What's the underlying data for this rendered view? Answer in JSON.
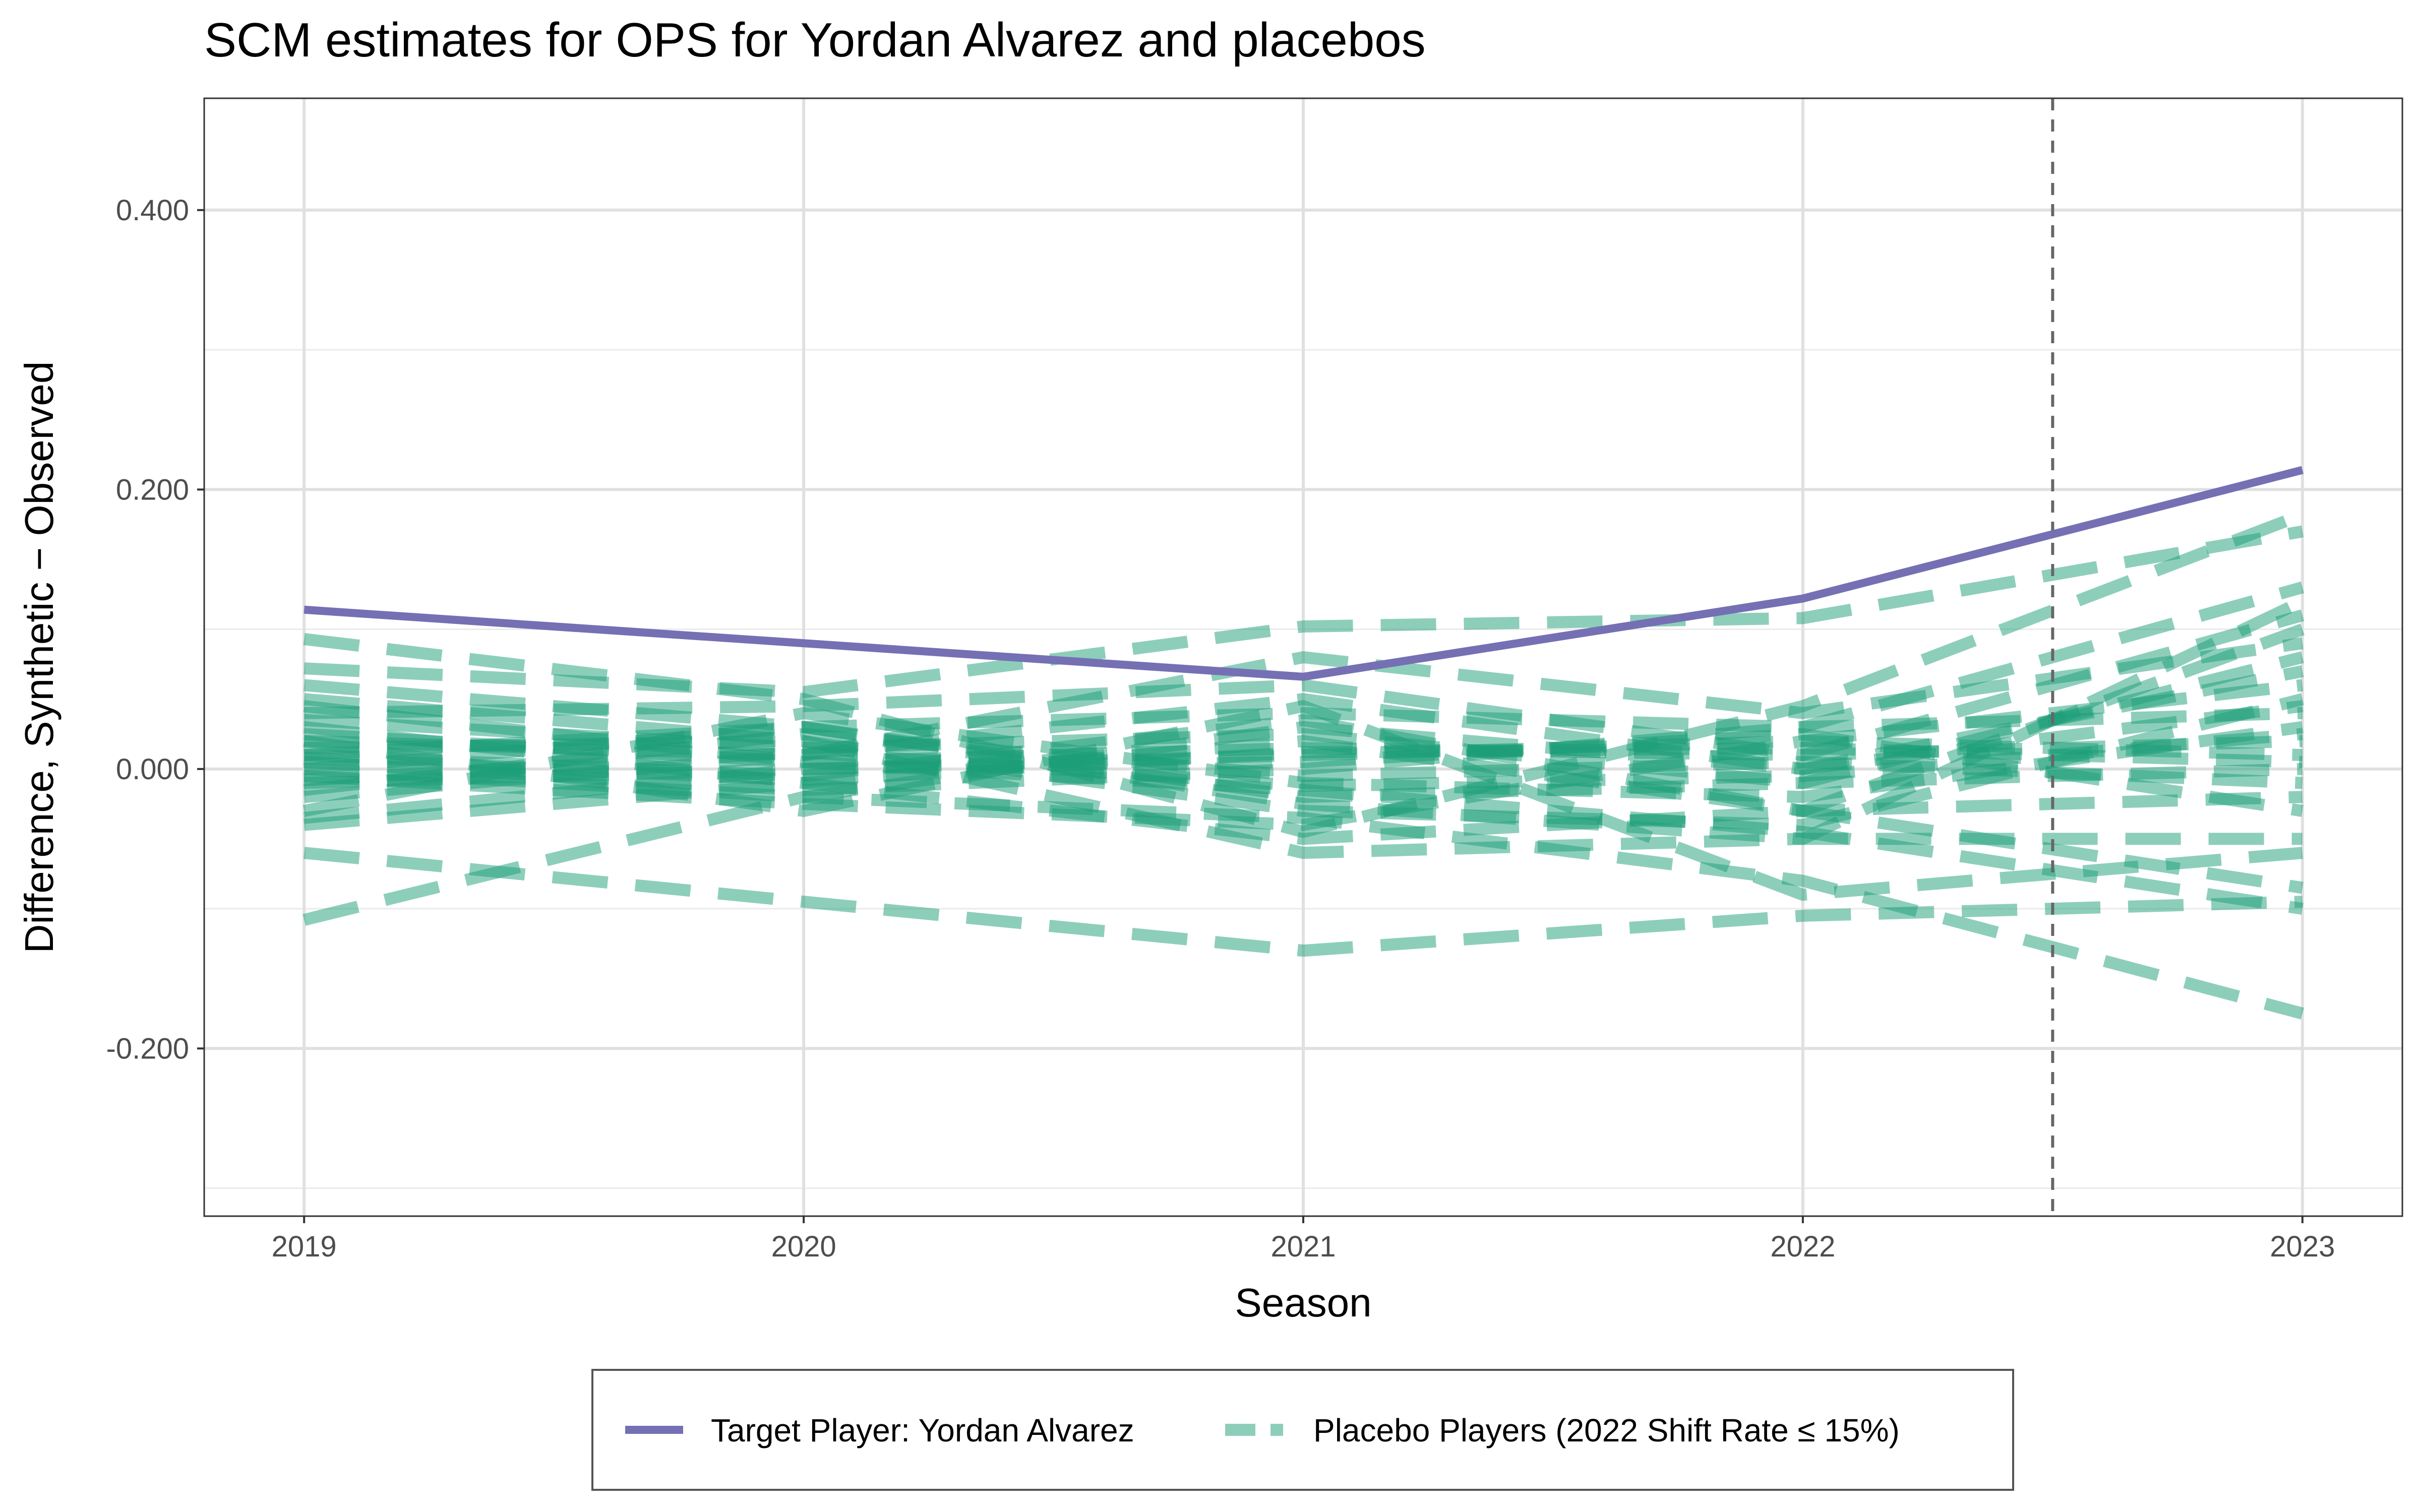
{
  "chart_data": {
    "type": "line",
    "title": "SCM estimates for OPS for Yordan Alvarez and placebos",
    "xlabel": "Season",
    "ylabel": "Difference, Synthetic − Observed",
    "x": [
      2019,
      2020,
      2021,
      2022,
      2023
    ],
    "x_ticks": [
      "2019",
      "2020",
      "2021",
      "2022",
      "2023"
    ],
    "y_ticks": [
      "-0.200",
      "0.000",
      "0.200",
      "0.400"
    ],
    "xlim": [
      2018.8,
      2023.2
    ],
    "ylim": [
      -0.32,
      0.48
    ],
    "grid": true,
    "vline_x": 2022.5,
    "legend_position": "bottom",
    "colors": {
      "target": "#7570b3",
      "placebo": "#1b9e77",
      "vline": "#666666"
    },
    "series": [
      {
        "name": "Target Player: Yordan Alvarez",
        "role": "target",
        "values": [
          0.114,
          0.09,
          0.066,
          0.122,
          0.214
        ]
      },
      {
        "role": "placebo",
        "values": [
          0.093,
          0.05,
          -0.045,
          0.045,
          0.182
        ]
      },
      {
        "role": "placebo",
        "values": [
          0.072,
          0.055,
          0.102,
          0.108,
          0.17
        ]
      },
      {
        "role": "placebo",
        "values": [
          0.06,
          0.03,
          0.04,
          0.03,
          0.13
        ]
      },
      {
        "role": "placebo",
        "values": [
          0.05,
          0.02,
          -0.06,
          -0.05,
          0.12
        ]
      },
      {
        "role": "placebo",
        "values": [
          0.04,
          0.045,
          0.06,
          0.01,
          0.11
        ]
      },
      {
        "role": "placebo",
        "values": [
          0.03,
          -0.01,
          0.02,
          -0.03,
          0.1
        ]
      },
      {
        "role": "placebo",
        "values": [
          0.02,
          0.01,
          0.08,
          0.04,
          0.09
        ]
      },
      {
        "role": "placebo",
        "values": [
          0.01,
          0.03,
          -0.02,
          -0.01,
          0.08
        ]
      },
      {
        "role": "placebo",
        "values": [
          0.0,
          -0.02,
          0.03,
          0.0,
          0.07
        ]
      },
      {
        "role": "placebo",
        "values": [
          -0.01,
          0.0,
          0.01,
          0.02,
          0.06
        ]
      },
      {
        "role": "placebo",
        "values": [
          0.015,
          0.02,
          -0.03,
          -0.04,
          0.05
        ]
      },
      {
        "role": "placebo",
        "values": [
          -0.02,
          0.01,
          0.05,
          0.0,
          0.045
        ]
      },
      {
        "role": "placebo",
        "values": [
          0.005,
          -0.015,
          0.0,
          0.03,
          0.04
        ]
      },
      {
        "role": "placebo",
        "values": [
          -0.03,
          0.04,
          -0.01,
          -0.02,
          0.03
        ]
      },
      {
        "role": "placebo",
        "values": [
          0.025,
          0.005,
          0.015,
          0.01,
          0.02
        ]
      },
      {
        "role": "placebo",
        "values": [
          -0.005,
          -0.025,
          -0.04,
          0.02,
          0.01
        ]
      },
      {
        "role": "placebo",
        "values": [
          0.035,
          0.015,
          0.025,
          -0.01,
          0.0
        ]
      },
      {
        "role": "placebo",
        "values": [
          -0.015,
          0.025,
          -0.005,
          0.005,
          -0.01
        ]
      },
      {
        "role": "placebo",
        "values": [
          0.01,
          -0.005,
          0.035,
          -0.03,
          -0.02
        ]
      },
      {
        "role": "placebo",
        "values": [
          -0.035,
          0.0,
          0.005,
          0.025,
          -0.03
        ]
      },
      {
        "role": "placebo",
        "values": [
          0.0,
          0.03,
          -0.025,
          -0.05,
          -0.05
        ]
      },
      {
        "role": "placebo",
        "values": [
          0.02,
          -0.03,
          0.045,
          -0.09,
          -0.06
        ]
      },
      {
        "role": "placebo",
        "values": [
          -0.04,
          -0.01,
          -0.05,
          -0.03,
          -0.085
        ]
      },
      {
        "role": "placebo",
        "values": [
          0.045,
          0.005,
          -0.015,
          -0.045,
          -0.1
        ]
      },
      {
        "role": "placebo",
        "values": [
          -0.06,
          -0.095,
          -0.13,
          -0.105,
          -0.095
        ]
      },
      {
        "role": "placebo",
        "values": [
          -0.108,
          -0.02,
          -0.035,
          -0.08,
          -0.175
        ]
      },
      {
        "role": "placebo",
        "values": [
          0.008,
          -0.008,
          0.012,
          0.015,
          0.005
        ]
      },
      {
        "role": "placebo",
        "values": [
          -0.008,
          0.012,
          -0.012,
          -0.005,
          0.025
        ]
      }
    ]
  },
  "legend": {
    "items": [
      {
        "label": "Target Player: Yordan Alvarez",
        "role": "target"
      },
      {
        "label": "Placebo Players (2022 Shift Rate ≤ 15%)",
        "role": "placebo"
      }
    ]
  }
}
